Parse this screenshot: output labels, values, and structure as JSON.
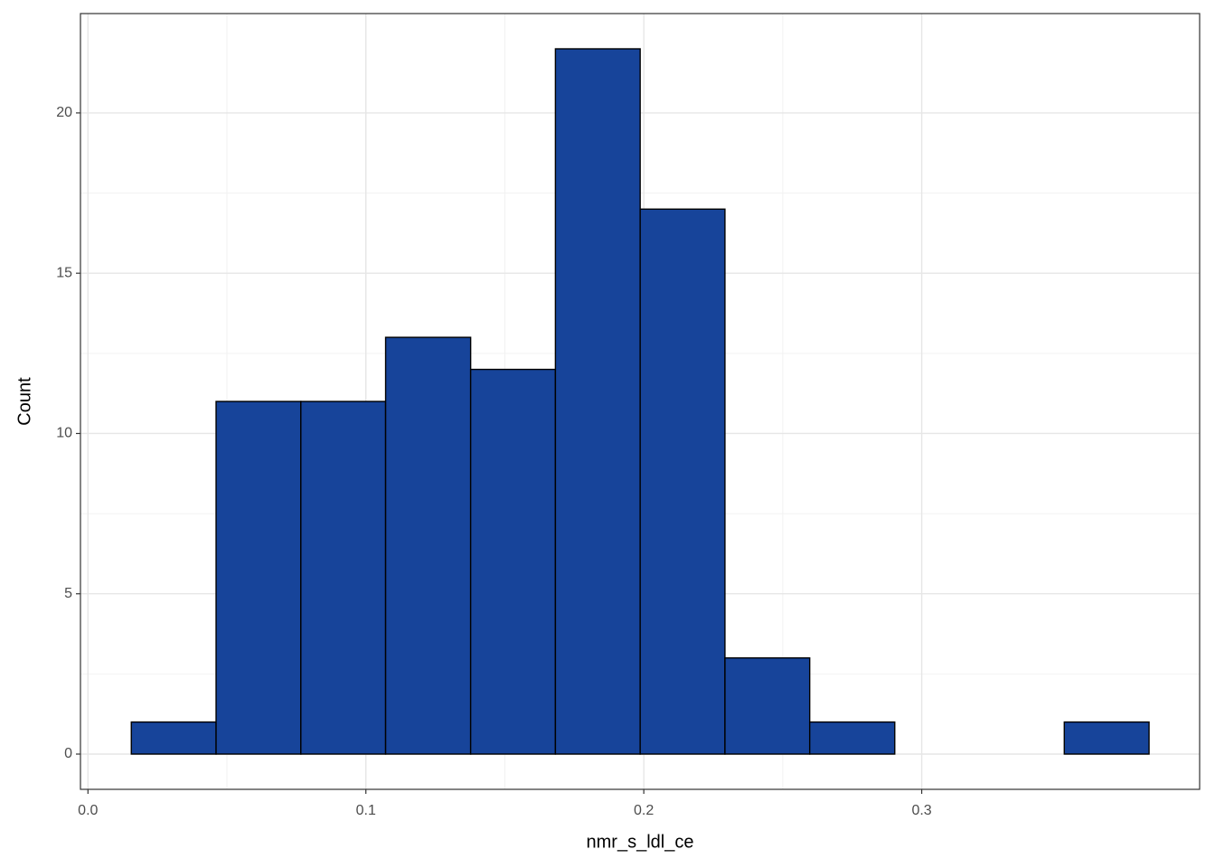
{
  "chart_data": {
    "type": "histogram",
    "x_label": "nmr_s_ldl_ce",
    "y_label": "Count",
    "bins": [
      0.0156,
      0.0461,
      0.0766,
      0.1071,
      0.1377,
      0.1682,
      0.1987,
      0.2292,
      0.2597,
      0.2903,
      0.3208,
      0.3513,
      0.3818
    ],
    "counts": [
      1,
      11,
      11,
      13,
      12,
      22,
      17,
      3,
      1,
      0,
      0,
      1
    ],
    "color": "#17449a",
    "xlim": [
      -0.0027,
      0.4
    ],
    "ylim": [
      -1.1,
      23.1
    ],
    "xticks": [
      {
        "value": 0,
        "label": "0.0"
      },
      0.1,
      0.2,
      0.3
    ],
    "yticks": [
      0,
      5,
      10,
      15,
      20
    ],
    "grid": true
  }
}
